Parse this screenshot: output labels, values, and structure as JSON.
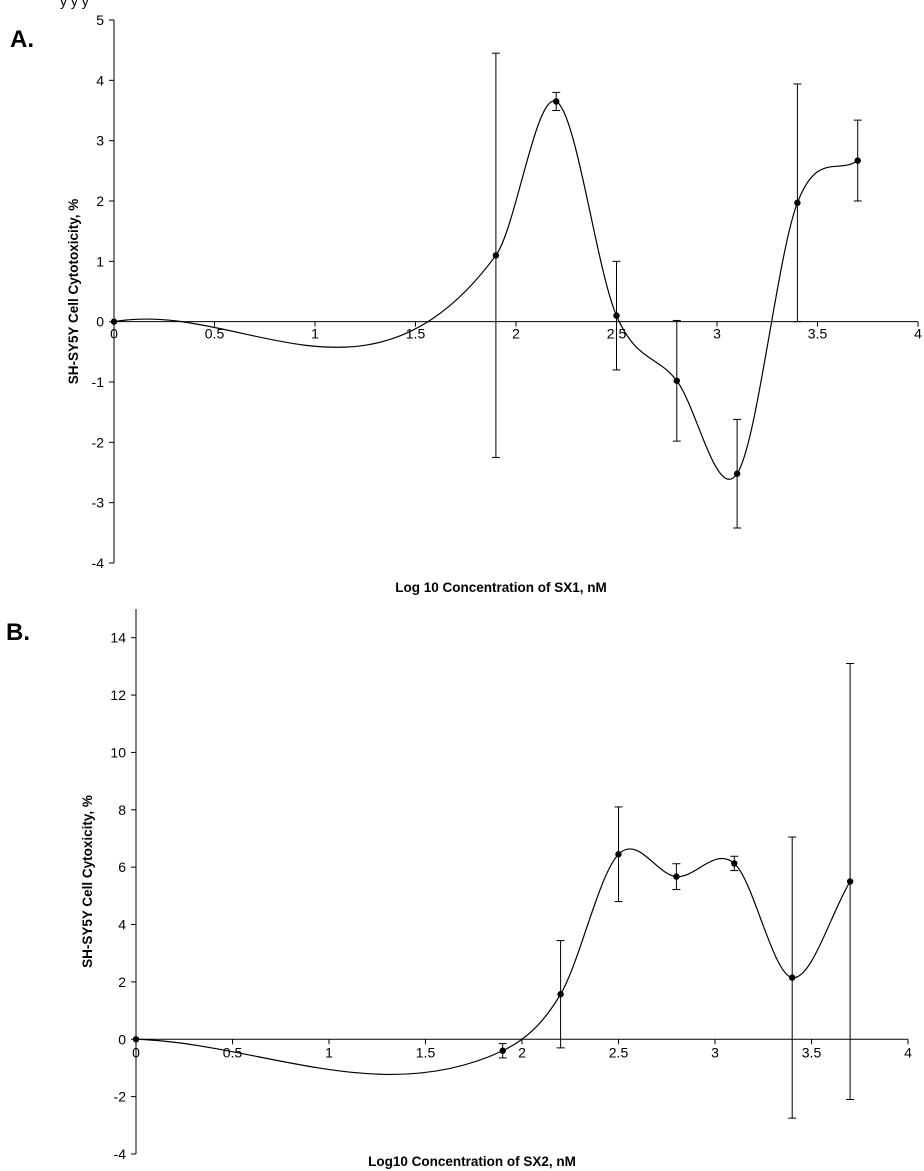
{
  "figure": {
    "top_fragment": "y                                y    y"
  },
  "chart_data": [
    {
      "panel_label": "A.",
      "type": "line",
      "curve": "smoothed",
      "marker": "filled-circle",
      "error_bars": true,
      "xlabel": "Log 10 Concentration of SX1, nM",
      "ylabel": "SH-SY5Y Cell Cytotoxicity, %",
      "xlim": [
        0,
        4
      ],
      "ylim": [
        -4,
        5
      ],
      "xticks": [
        0,
        0.5,
        1,
        1.5,
        2,
        2.5,
        3,
        3.5,
        4
      ],
      "xtick_labels": [
        "0",
        "0.5",
        "1",
        "1.5",
        "2",
        "2.5",
        "3",
        "3.5",
        "4"
      ],
      "yticks": [
        -4,
        -3,
        -2,
        -1,
        0,
        1,
        2,
        3,
        4,
        5
      ],
      "ytick_labels": [
        "-4",
        "-3",
        "-2",
        "-1",
        "0",
        "1",
        "2",
        "3",
        "4",
        "5"
      ],
      "x": [
        0,
        1.9,
        2.2,
        2.5,
        2.8,
        3.1,
        3.4,
        3.7
      ],
      "y": [
        0,
        1.1,
        3.65,
        0.1,
        -0.98,
        -2.52,
        1.97,
        2.67
      ],
      "err_low": [
        0,
        3.35,
        0.15,
        0.9,
        1.0,
        0.9,
        1.97,
        0.67
      ],
      "err_high": [
        0,
        3.35,
        0.15,
        0.9,
        1.0,
        0.9,
        1.97,
        0.67
      ],
      "grid": false,
      "line_color": "#000000"
    },
    {
      "panel_label": "B.",
      "type": "line",
      "curve": "smoothed",
      "marker": "filled-circle",
      "error_bars": true,
      "xlabel": "Log10 Concentration of SX2, nM",
      "ylabel": "SH-SY5Y Cell Cytoxicity, %",
      "xlim": [
        0,
        4
      ],
      "ylim": [
        -4,
        15
      ],
      "xticks": [
        0,
        0.5,
        1,
        1.5,
        2,
        2.5,
        3,
        3.5,
        4
      ],
      "xtick_labels": [
        "0",
        "0.5",
        "1",
        "1.5",
        "2",
        "2.5",
        "3",
        "3.5",
        "4"
      ],
      "yticks": [
        -4,
        -2,
        0,
        2,
        4,
        6,
        8,
        10,
        12,
        14
      ],
      "ytick_labels": [
        "-4",
        "-2",
        "0",
        "2",
        "4",
        "6",
        "8",
        "10",
        "12",
        "14"
      ],
      "x": [
        0,
        1.9,
        2.2,
        2.5,
        2.8,
        3.1,
        3.4,
        3.7
      ],
      "y": [
        0,
        -0.4,
        1.57,
        6.45,
        5.67,
        6.13,
        2.15,
        5.5
      ],
      "err_low": [
        0,
        0.25,
        1.87,
        1.65,
        0.45,
        0.25,
        4.9,
        7.6
      ],
      "err_high": [
        0,
        0.25,
        1.87,
        1.65,
        0.45,
        0.25,
        4.9,
        7.6
      ],
      "grid": false,
      "line_color": "#000000"
    }
  ]
}
